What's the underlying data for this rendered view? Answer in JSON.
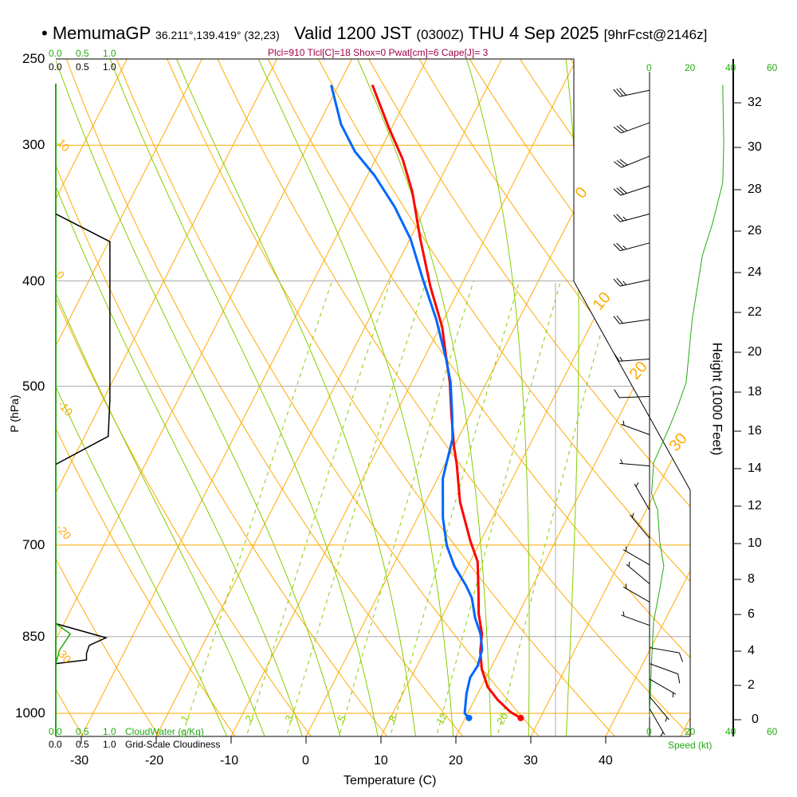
{
  "header": {
    "bullet": "•",
    "model": "MemumaGP",
    "location": "36.211°,139.419° (32,23)",
    "valid": "Valid 1200 JST",
    "utc": "(0300Z)",
    "date": "THU 4 Sep 2025",
    "forecast": "[9hrFcst@2146z]"
  },
  "indices": "Plcl=910 Tlcl[C]=18 Shox=0 Pwat[cm]=6 Cape[J]= 3",
  "colors": {
    "temperature": "#ff0000",
    "dewpoint": "#0066ff",
    "isotherm": "#ffaa00",
    "moist_adiabat": "#88cc00",
    "cloud_water": "#22aa11",
    "indices": "#a0004a"
  },
  "chart_data": {
    "type": "skew-t",
    "xlabel": "Temperature (C)",
    "ylabel": "P (hPa)",
    "y2label": "Height (1000 Feet)",
    "xticks": [
      "-30",
      "-20",
      "-10",
      "0",
      "10",
      "20",
      "30",
      "40"
    ],
    "xtick_values": [
      -30,
      -20,
      -10,
      0,
      10,
      20,
      30,
      40
    ],
    "pressure_levels": [
      "250",
      "300",
      "400",
      "500",
      "700",
      "850",
      "1000"
    ],
    "pressure_values": [
      250,
      300,
      400,
      500,
      700,
      850,
      1000
    ],
    "height_ticks": [
      "0",
      "2",
      "4",
      "6",
      "8",
      "10",
      "12",
      "14",
      "16",
      "18",
      "20",
      "22",
      "24",
      "26",
      "28",
      "30",
      "32"
    ],
    "height_tick_pressures": [
      1007,
      999,
      918,
      855,
      796,
      741,
      688,
      638,
      592,
      547,
      505,
      465,
      429,
      394,
      361,
      330,
      299
    ],
    "isotherm_labels_left": [
      "10",
      "0",
      "-10",
      "-20",
      "-30"
    ],
    "isotherm_labels_right": [
      "0",
      "10",
      "20",
      "30"
    ],
    "mixing_ratio_labels": [
      "1",
      "2",
      "3",
      "5",
      "8",
      "12",
      "20"
    ],
    "mixing_ratio_values": [
      1,
      2,
      3,
      5,
      8,
      12,
      20
    ],
    "temperature": {
      "name": "Temperature",
      "p": [
        1010,
        997,
        972,
        946,
        911,
        878,
        845,
        810,
        776,
        725,
        695,
        639,
        590,
        568,
        531,
        496,
        468,
        441,
        405,
        366,
        331,
        309,
        289,
        264
      ],
      "t": [
        27.4,
        25.6,
        23.1,
        20.9,
        18.9,
        17.5,
        16.5,
        14.7,
        13.3,
        11.0,
        8.7,
        4.6,
        1.6,
        0.0,
        -2.5,
        -4.9,
        -7.3,
        -9.7,
        -14.0,
        -18.6,
        -22.9,
        -26.4,
        -30.4,
        -35.5
      ]
    },
    "dewpoint": {
      "name": "Dewpoint",
      "p": [
        1010,
        1000,
        959,
        927,
        904,
        874,
        845,
        817,
        783,
        763,
        732,
        701,
        661,
        608,
        587,
        559,
        531,
        496,
        472,
        434,
        398,
        366,
        342,
        320,
        304,
        287,
        264
      ],
      "t": [
        20.5,
        19.6,
        18.5,
        17.9,
        18.1,
        17.6,
        16.3,
        14.5,
        12.7,
        11.1,
        8.2,
        5.8,
        3.4,
        0.7,
        0.1,
        -0.7,
        -2.4,
        -4.8,
        -7.0,
        -11.0,
        -15.6,
        -19.9,
        -24.2,
        -29.0,
        -33.3,
        -37.0,
        -41.0
      ]
    },
    "cloudiness": {
      "name": "Grid-Scale Cloudiness",
      "axis_labels": [
        "0.0",
        "0.5",
        "1.0"
      ],
      "p": [
        347,
        368,
        513,
        556,
        590,
        827,
        852,
        866,
        881,
        893,
        900
      ],
      "value": [
        0,
        0.97,
        0.97,
        0.94,
        0,
        0,
        0.9,
        0.6,
        0.55,
        0.55,
        0
      ]
    },
    "cloud_water": {
      "name": "CloudWater (g/Kg)",
      "axis_labels": [
        "0.0",
        "0.5",
        "1.0"
      ],
      "p": [
        827,
        845,
        874,
        900
      ],
      "value": [
        0,
        0.26,
        0.07,
        0
      ]
    },
    "wind_speed": {
      "name": "Speed (kt)",
      "axis_labels": [
        "0",
        "20",
        "40",
        "60"
      ],
      "p": [
        264,
        299,
        325,
        354,
        379,
        434,
        496,
        521,
        544,
        588,
        628,
        650,
        695,
        732,
        769,
        823,
        896,
        1008
      ],
      "kt": [
        36,
        36.5,
        36,
        31,
        26,
        21,
        18,
        14,
        10,
        2,
        1,
        4,
        5,
        7,
        5,
        2,
        1,
        0
      ]
    },
    "wind_barbs": [
      {
        "p": 267,
        "dir": 258,
        "kt": 30
      },
      {
        "p": 286,
        "dir": 250,
        "kt": 30
      },
      {
        "p": 307,
        "dir": 248,
        "kt": 30
      },
      {
        "p": 327,
        "dir": 252,
        "kt": 30
      },
      {
        "p": 347,
        "dir": 255,
        "kt": 25
      },
      {
        "p": 369,
        "dir": 255,
        "kt": 25
      },
      {
        "p": 399,
        "dir": 258,
        "kt": 25
      },
      {
        "p": 434,
        "dir": 262,
        "kt": 20
      },
      {
        "p": 472,
        "dir": 266,
        "kt": 15
      },
      {
        "p": 511,
        "dir": 268,
        "kt": 10
      },
      {
        "p": 554,
        "dir": 290,
        "kt": 5
      },
      {
        "p": 592,
        "dir": 275,
        "kt": 5
      },
      {
        "p": 650,
        "dir": 330,
        "kt": 5
      },
      {
        "p": 690,
        "dir": 320,
        "kt": 5
      },
      {
        "p": 730,
        "dir": 300,
        "kt": 5
      },
      {
        "p": 760,
        "dir": 310,
        "kt": 5
      },
      {
        "p": 790,
        "dir": 300,
        "kt": 5
      },
      {
        "p": 830,
        "dir": 290,
        "kt": 5
      },
      {
        "p": 870,
        "dir": 100,
        "kt": 10
      },
      {
        "p": 900,
        "dir": 110,
        "kt": 10
      },
      {
        "p": 930,
        "dir": 120,
        "kt": 5
      },
      {
        "p": 965,
        "dir": 140,
        "kt": 5
      },
      {
        "p": 990,
        "dir": 150,
        "kt": 5
      }
    ]
  },
  "labels": {
    "cloudwater_top": [
      "0.0",
      "0.5",
      "1.0"
    ],
    "cloudiness_top": [
      "0.0",
      "0.5",
      "1.0"
    ],
    "cloudwater_bottom": "CloudWater (g/Kg)",
    "cloudiness_bottom": "Grid-Scale Cloudiness",
    "speed_top": [
      "0",
      "20",
      "40",
      "60"
    ],
    "speed_bottom": [
      "0",
      "20",
      "40",
      "60"
    ],
    "speed_label": "Speed (kt)"
  }
}
